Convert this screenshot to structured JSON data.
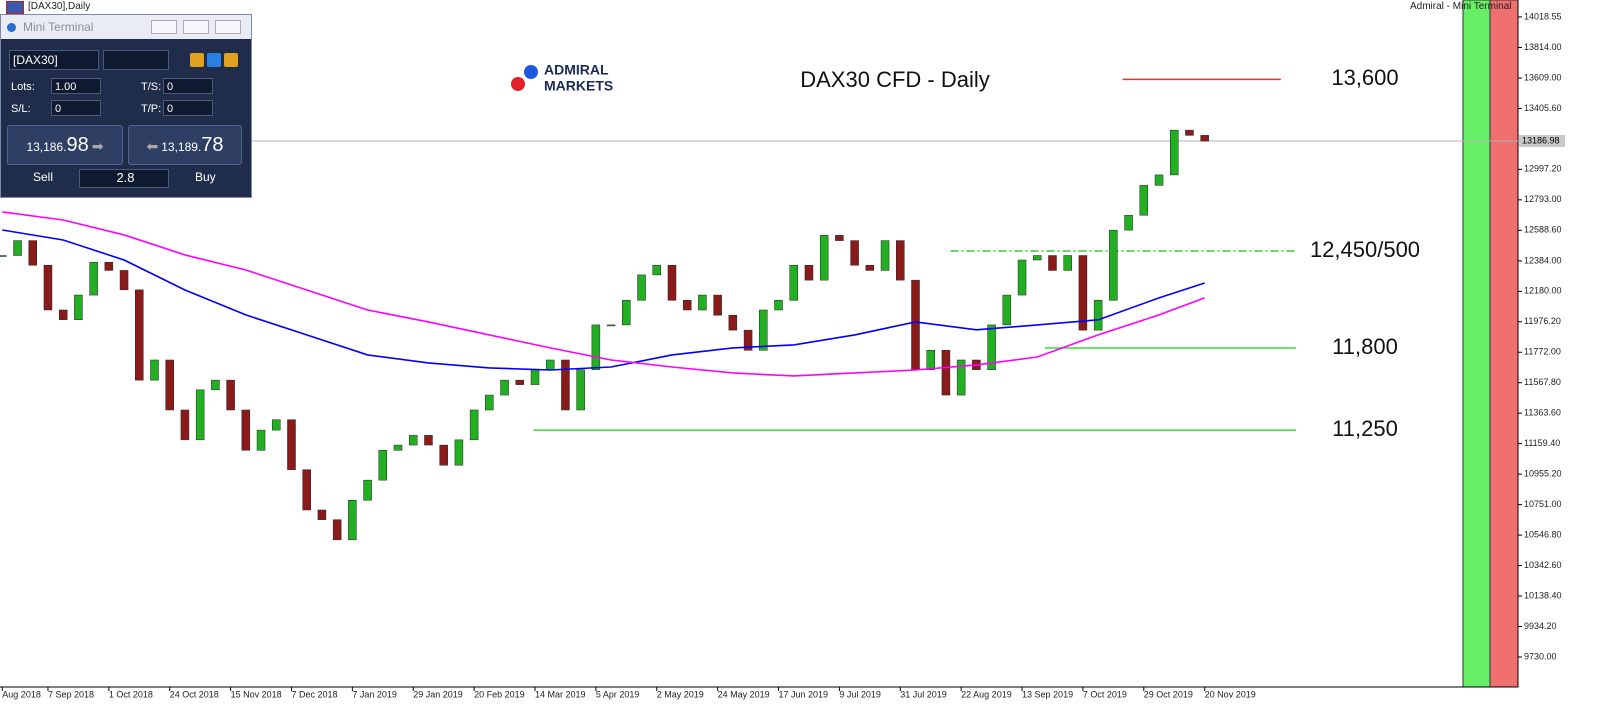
{
  "window": {
    "title": "[DAX30],Daily",
    "right_title": "Admiral - Mini Terminal"
  },
  "terminal": {
    "title": "Mini Terminal",
    "symbol": "[DAX30]",
    "lots_label": "Lots:",
    "lots": "1.00",
    "ts_label": "T/S:",
    "ts": "0",
    "sl_label": "S/L:",
    "sl": "0",
    "tp_label": "T/P:",
    "tp": "0",
    "sell_price": "13,186.",
    "sell_pips": "98",
    "buy_price": "13,189.",
    "buy_pips": "78",
    "sell": "Sell",
    "buy": "Buy",
    "spread": "2.8"
  },
  "logo": {
    "line1": "ADMIRAL",
    "line2": "MARKETS"
  },
  "chart_data": {
    "type": "candlestick",
    "title": "DAX30 CFD - Daily",
    "categories": [
      "Aug 2018",
      null,
      null,
      "7 Sep 2018",
      null,
      null,
      null,
      "1 Oct 2018",
      null,
      null,
      null,
      "24 Oct 2018",
      null,
      null,
      null,
      "15 Nov 2018",
      null,
      null,
      null,
      "7 Dec 2018",
      null,
      null,
      null,
      "7 Jan 2019",
      null,
      null,
      null,
      "29 Jan 2019",
      null,
      null,
      null,
      "20 Feb 2019",
      null,
      null,
      null,
      "14 Mar 2019",
      null,
      null,
      null,
      "5 Apr 2019",
      null,
      null,
      null,
      "2 May 2019",
      null,
      null,
      null,
      "24 May 2019",
      null,
      null,
      null,
      "17 Jun 2019",
      null,
      null,
      null,
      "9 Jul 2019",
      null,
      null,
      null,
      "31 Jul 2019",
      null,
      null,
      null,
      "22 Aug 2019",
      null,
      null,
      null,
      "13 Sep 2019",
      null,
      null,
      null,
      "7 Oct 2019",
      null,
      null,
      null,
      "29 Oct 2019",
      null,
      null,
      null,
      "20 Nov 2019"
    ],
    "series": [
      {
        "color_up": "#22b022",
        "color_down": "#8b1a1a",
        "values": [
          12420,
          12520,
          12355,
          12055,
          11990,
          12155,
          12375,
          12320,
          12190,
          11585,
          11720,
          11385,
          11185,
          11520,
          11585,
          11385,
          11115,
          11250,
          11320,
          10985,
          10715,
          10650,
          10515,
          10780,
          10915,
          11115,
          11150,
          11215,
          11150,
          11015,
          11185,
          11385,
          11485,
          11585,
          11555,
          11655,
          11720,
          11385,
          11655,
          11955,
          11955,
          12120,
          12290,
          12355,
          12120,
          12055,
          12155,
          12020,
          11920,
          11785,
          12055,
          12120,
          12355,
          12255,
          12555,
          12520,
          12355,
          12320,
          12520,
          12255,
          11655,
          11785,
          11485,
          11720,
          11655,
          11955,
          12155,
          12390,
          12420,
          12320,
          12420,
          11920,
          12120,
          12590,
          12690,
          12890,
          12960,
          13260,
          13225,
          13187
        ]
      },
      {
        "color": "#0000ff",
        "x": [
          0,
          4,
          8,
          12,
          16,
          20,
          24,
          28,
          32,
          36,
          40,
          44,
          48,
          52,
          56,
          60,
          64,
          68,
          72,
          76,
          79
        ],
        "values": [
          12591,
          12524,
          12390,
          12189,
          12022,
          11888,
          11754,
          11700,
          11667,
          11653,
          11673,
          11754,
          11801,
          11821,
          11888,
          11975,
          11922,
          11955,
          11989,
          12136,
          12236
        ]
      },
      {
        "color": "#ff00ff",
        "x": [
          0,
          4,
          8,
          12,
          16,
          20,
          24,
          28,
          32,
          36,
          40,
          44,
          48,
          52,
          56,
          60,
          64,
          68,
          72,
          76,
          79
        ],
        "values": [
          12712,
          12658,
          12558,
          12424,
          12323,
          12189,
          12055,
          11975,
          11888,
          11801,
          11720,
          11673,
          11633,
          11613,
          11633,
          11653,
          11687,
          11740,
          11888,
          12022,
          12136
        ]
      }
    ],
    "levels": [
      {
        "label": "13,600",
        "value": 13600,
        "color": "#e03030",
        "from": 73.6,
        "to": 84,
        "dash": false
      },
      {
        "label": "12,450/500",
        "value": 12450,
        "color": "#33cc33",
        "from": 62.3,
        "to": 85,
        "dash": true
      },
      {
        "label": "11,800",
        "value": 11800,
        "color": "#33dd33",
        "from": 68.5,
        "to": 85,
        "dash": false
      },
      {
        "label": "11,250",
        "value": 11250,
        "color": "#33dd33",
        "from": 34.9,
        "to": 85,
        "dash": false
      }
    ],
    "last_price": 13186.98,
    "ylim": [
      9529,
      14132
    ],
    "yticks": [
      14018.55,
      {
        "value": 13814,
        "label": "13814.00"
      },
      {
        "value": 13609,
        "label": "13609.00"
      },
      {
        "value": 13405.6,
        "label": "13405.60"
      },
      {
        "value": 12997.2,
        "label": "12997.20"
      },
      {
        "value": 12793,
        "label": "12793.00"
      },
      {
        "value": 12588.6,
        "label": "12588.60"
      },
      {
        "value": 12384,
        "label": "12384.00"
      },
      {
        "value": 12180,
        "label": "12180.00"
      },
      {
        "value": 11976.2,
        "label": "11976.20"
      },
      {
        "value": 11772,
        "label": "11772.00"
      },
      {
        "value": 11567.8,
        "label": "11567.80"
      },
      {
        "value": 11363.6,
        "label": "11363.60"
      },
      {
        "value": 11159.4,
        "label": "11159.40"
      },
      {
        "value": 10955.2,
        "label": "10955.20"
      },
      {
        "value": 10751,
        "label": "10751.00"
      },
      {
        "value": 10546.8,
        "label": "10546.80"
      },
      {
        "value": 10342.6,
        "label": "10342.60"
      },
      {
        "value": 10138.4,
        "label": "10138.40"
      },
      {
        "value": 9934.2,
        "label": "9934.20"
      },
      {
        "value": 9730,
        "label": "9730.00"
      }
    ],
    "grid": false
  }
}
